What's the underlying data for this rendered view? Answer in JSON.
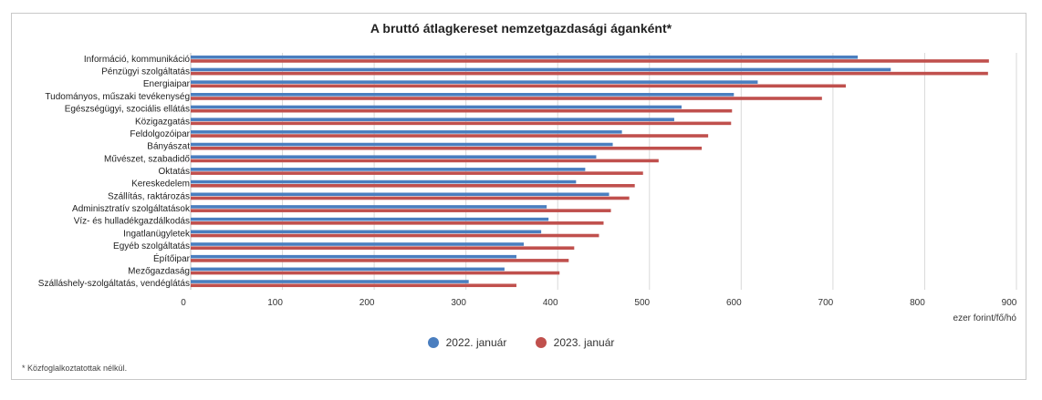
{
  "chart_data": {
    "type": "bar",
    "orientation": "horizontal",
    "title": "A bruttó átlagkereset nemzetgazdasági áganként*",
    "xlabel": "ezer forint/fő/hó",
    "xlim": [
      0,
      900
    ],
    "xticks": [
      "0",
      "100",
      "200",
      "300",
      "400",
      "500",
      "600",
      "700",
      "800",
      "900"
    ],
    "grid": true,
    "legend_position": "bottom",
    "categories": [
      "Információ, kommunikáció",
      "Pénzügyi szolgáltatás",
      "Energiaipar",
      "Tudományos, műszaki tevékenység",
      "Egészségügyi, szociális ellátás",
      "Közigazgatás",
      "Feldolgozóipar",
      "Bányászat",
      "Művészet, szabadidő",
      "Oktatás",
      "Kereskedelem",
      "Szállítás, raktározás",
      "Adminisztratív szolgáltatások",
      "Víz- és hulladékgazdálkodás",
      "Ingatlanügyletek",
      "Egyéb szolgáltatás",
      "Építőipar",
      "Mezőgazdaság",
      "Szálláshely-szolgáltatás, vendéglátás"
    ],
    "series": [
      {
        "name": "2022. január",
        "color": "#4a7ebf",
        "values": [
          727,
          763,
          618,
          592,
          535,
          527,
          470,
          460,
          442,
          430,
          420,
          456,
          388,
          390,
          382,
          363,
          355,
          342,
          303
        ]
      },
      {
        "name": "2023. január",
        "color": "#c0504d",
        "values": [
          870,
          869,
          714,
          688,
          590,
          589,
          564,
          557,
          510,
          493,
          484,
          478,
          458,
          450,
          445,
          418,
          412,
          402,
          355
        ]
      }
    ]
  },
  "footnote": "* Közfoglalkoztatottak nélkül."
}
